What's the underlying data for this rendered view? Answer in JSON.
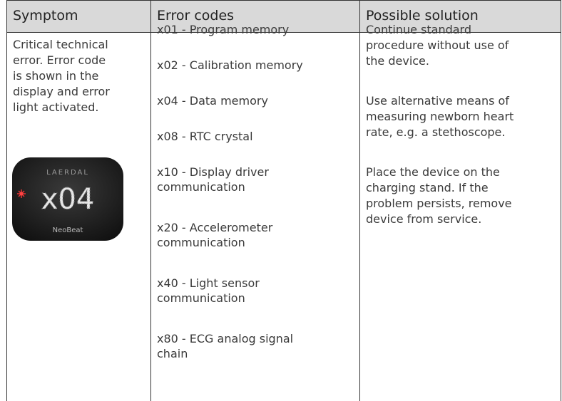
{
  "table": {
    "header": [
      "Symptom",
      "Error codes",
      "Possible solution"
    ],
    "symptom": {
      "lines": [
        "Critical technical",
        "error. Error code",
        "is shown in the",
        "display and error",
        "light activated."
      ],
      "device": {
        "brand": "LAERDAL",
        "display": "x04",
        "model": "NeoBeat"
      }
    },
    "error_codes": [
      [
        "x01 - Program memory"
      ],
      [
        "x02 - Calibration memory"
      ],
      [
        "x04 - Data memory"
      ],
      [
        "x08 - RTC crystal"
      ],
      [
        "x10 - Display driver",
        "communication"
      ],
      [
        "x20 - Accelerometer",
        "communication"
      ],
      [
        "x40 - Light sensor",
        "communication"
      ],
      [
        "x80 - ECG analog signal",
        "chain"
      ]
    ],
    "solutions": [
      [
        "Continue standard",
        "procedure without use of",
        "the device."
      ],
      [
        "Use alternative means of",
        "measuring newborn heart",
        "rate, e.g. a stethoscope."
      ],
      [
        "Place the device on the",
        "charging stand. If the",
        "problem persists, remove",
        "device from service."
      ]
    ]
  }
}
